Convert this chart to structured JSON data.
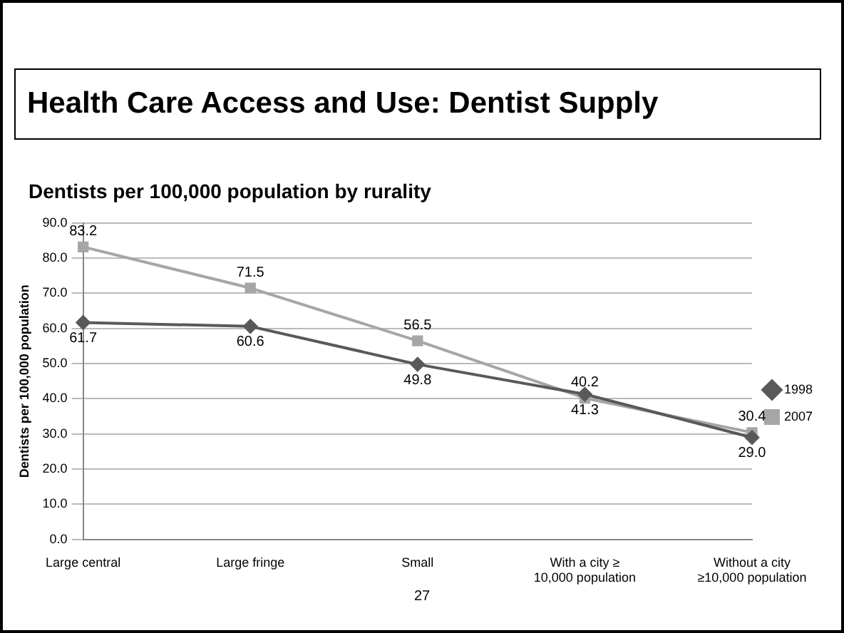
{
  "chart_data": {
    "type": "line",
    "title": "Health Care Access and Use: Dentist Supply",
    "subtitle": "Dentists per 100,000 population by rurality",
    "ylabel": "Dentists per 100,000 population",
    "categories": [
      "Large central",
      "Large fringe",
      "Small",
      "With a city ≥ 10,000 population",
      "Without a city ≥10,000 population"
    ],
    "series": [
      {
        "name": "1998",
        "color": "#595959",
        "marker": "diamond",
        "values": [
          61.7,
          60.6,
          49.8,
          41.3,
          29.0
        ],
        "value_labels": [
          "61.7",
          "60.6",
          "49.8",
          "41.3",
          "29.0"
        ]
      },
      {
        "name": "2007",
        "color": "#a6a6a6",
        "marker": "square",
        "values": [
          83.2,
          71.5,
          56.5,
          40.2,
          30.4
        ],
        "value_labels": [
          "83.2",
          "71.5",
          "56.5",
          "40.2",
          "30.4"
        ]
      }
    ],
    "ylim": [
      0,
      90
    ],
    "yticks": [
      {
        "value": 0,
        "label": "0.0"
      },
      {
        "value": 10,
        "label": "10.0"
      },
      {
        "value": 20,
        "label": "20.0"
      },
      {
        "value": 30,
        "label": "30.0"
      },
      {
        "value": 40,
        "label": "40.0"
      },
      {
        "value": 50,
        "label": "50.0"
      },
      {
        "value": 60,
        "label": "60.0"
      },
      {
        "value": 70,
        "label": "70.0"
      },
      {
        "value": 80,
        "label": "80.0"
      },
      {
        "value": 90,
        "label": "90.0"
      }
    ],
    "grid": "y",
    "legend": "right",
    "line_style": "solid",
    "annotations": [
      "27"
    ]
  }
}
